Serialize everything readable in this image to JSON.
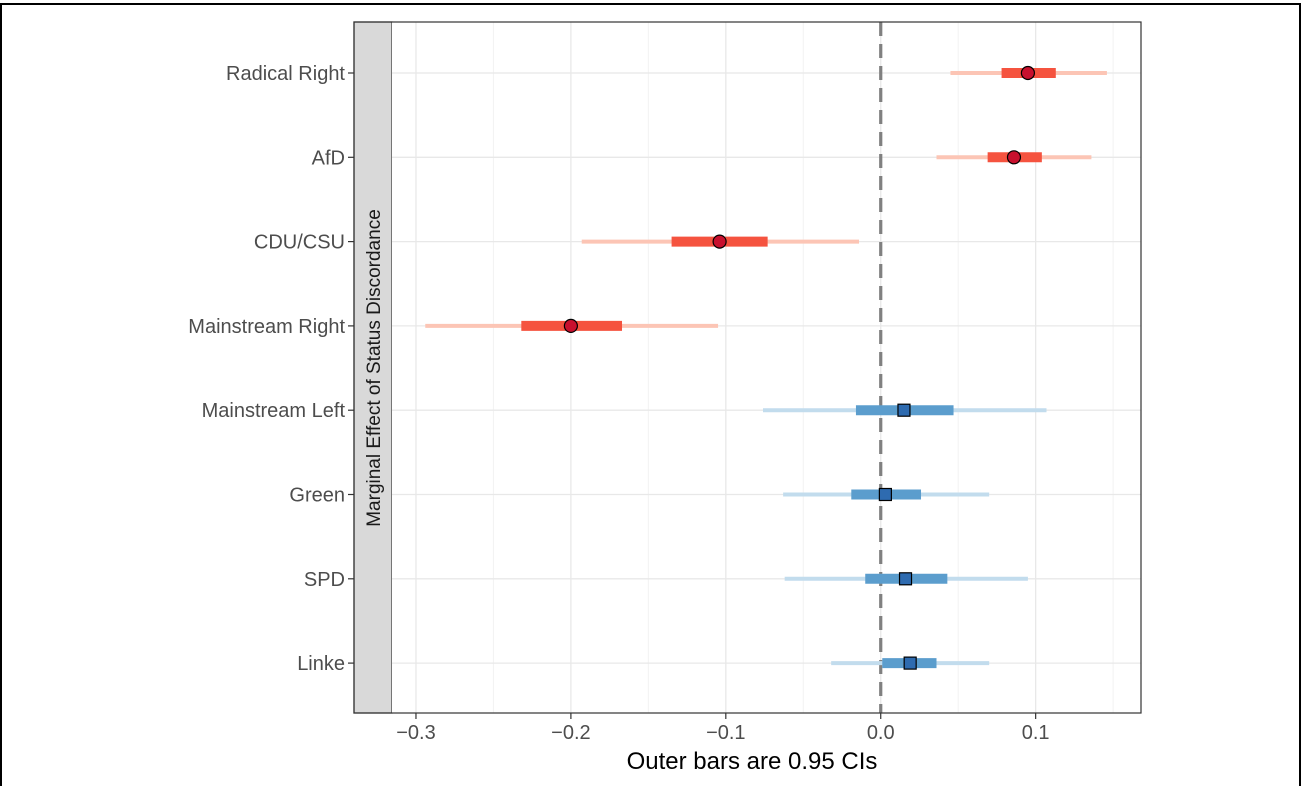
{
  "chart_data": {
    "type": "forest",
    "xlabel": "Outer bars are 0.95 CIs",
    "ylabel": "",
    "strip_label": "Marginal Effect of Status Discordance",
    "xlim": [
      -0.34,
      0.168
    ],
    "xticks": [
      -0.3,
      -0.2,
      -0.1,
      0.0,
      0.1
    ],
    "xtick_labels": [
      "−0.3",
      "−0.2",
      "−0.1",
      "0.0",
      "0.1"
    ],
    "minor_gridlines": [
      -0.25,
      -0.15,
      -0.05,
      0.05,
      0.15
    ],
    "reference_line": 0,
    "grid": true,
    "legend": "none",
    "categories": [
      "Radical Right",
      "AfD",
      "CDU/CSU",
      "Mainstream Right",
      "Mainstream Left",
      "Green",
      "SPD",
      "Linke"
    ],
    "series": [
      {
        "group": "right",
        "marker": "circle",
        "colors": {
          "outer": "#FCC5B5",
          "inner": "#F5533F",
          "point": "#C8102E"
        },
        "points": [
          {
            "category": "Radical Right",
            "estimate": 0.095,
            "ci95": [
              0.045,
              0.146
            ],
            "inner": [
              0.078,
              0.113
            ]
          },
          {
            "category": "AfD",
            "estimate": 0.086,
            "ci95": [
              0.036,
              0.136
            ],
            "inner": [
              0.069,
              0.104
            ]
          },
          {
            "category": "CDU/CSU",
            "estimate": -0.104,
            "ci95": [
              -0.193,
              -0.014
            ],
            "inner": [
              -0.135,
              -0.073
            ]
          },
          {
            "category": "Mainstream Right",
            "estimate": -0.2,
            "ci95": [
              -0.294,
              -0.105
            ],
            "inner": [
              -0.232,
              -0.167
            ]
          }
        ]
      },
      {
        "group": "left",
        "marker": "square",
        "colors": {
          "outer": "#C2DCED",
          "inner": "#5B9DCD",
          "point": "#2E6BB0"
        },
        "points": [
          {
            "category": "Mainstream Left",
            "estimate": 0.015,
            "ci95": [
              -0.076,
              0.107
            ],
            "inner": [
              -0.016,
              0.047
            ]
          },
          {
            "category": "Green",
            "estimate": 0.003,
            "ci95": [
              -0.063,
              0.07
            ],
            "inner": [
              -0.019,
              0.026
            ]
          },
          {
            "category": "SPD",
            "estimate": 0.016,
            "ci95": [
              -0.062,
              0.095
            ],
            "inner": [
              -0.01,
              0.043
            ]
          },
          {
            "category": "Linke",
            "estimate": 0.019,
            "ci95": [
              -0.032,
              0.07
            ],
            "inner": [
              0.001,
              0.036
            ]
          }
        ]
      }
    ]
  }
}
